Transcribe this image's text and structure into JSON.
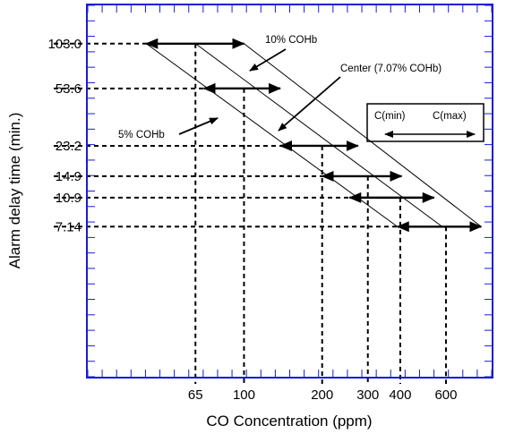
{
  "chart_data": {
    "type": "line",
    "xlabel": "CO Concentration (ppm)",
    "ylabel": "Alarm delay time (min.)",
    "x_scale": "log",
    "y_scale": "log",
    "x_tick_labels": [
      "65",
      "100",
      "200",
      "300",
      "400",
      "600"
    ],
    "x_tick_values": [
      65,
      100,
      200,
      300,
      400,
      600
    ],
    "y_tick_labels": [
      "103.0",
      "53.6",
      "23.2",
      "14.9",
      "10.9",
      "7.14"
    ],
    "y_tick_values": [
      103.0,
      53.6,
      23.2,
      14.9,
      10.9,
      7.14
    ],
    "xlim": [
      25,
      900
    ],
    "ylim": [
      0.8,
      180
    ],
    "series": [
      {
        "name": "10% COHb",
        "points": [
          [
            100,
            103.0
          ],
          [
            820,
            7.14
          ]
        ]
      },
      {
        "name": "Center (7.07% COHb)",
        "points": [
          [
            65,
            103.0
          ],
          [
            580,
            7.14
          ]
        ]
      },
      {
        "name": "5% COHb",
        "points": [
          [
            42,
            103.0
          ],
          [
            390,
            7.14
          ]
        ]
      }
    ],
    "ranges": [
      {
        "y": 103.0,
        "c_min": 42,
        "c_max": 100,
        "center": 65
      },
      {
        "y": 53.6,
        "c_min": 70,
        "c_max": 138,
        "center": 100
      },
      {
        "y": 23.2,
        "c_min": 138,
        "c_max": 275,
        "center": 200
      },
      {
        "y": 14.9,
        "c_min": 200,
        "c_max": 405,
        "center": 300
      },
      {
        "y": 10.9,
        "c_min": 255,
        "c_max": 540,
        "center": 400
      },
      {
        "y": 7.14,
        "c_min": 390,
        "c_max": 820,
        "center": 580
      }
    ],
    "annotations": {
      "ten_percent": "10% COHb",
      "center": "Center (7.07% COHb)",
      "five_percent": "5% COHb"
    },
    "legend": {
      "min_label": "C(min)",
      "max_label": "C(max)",
      "placement": "right"
    }
  }
}
